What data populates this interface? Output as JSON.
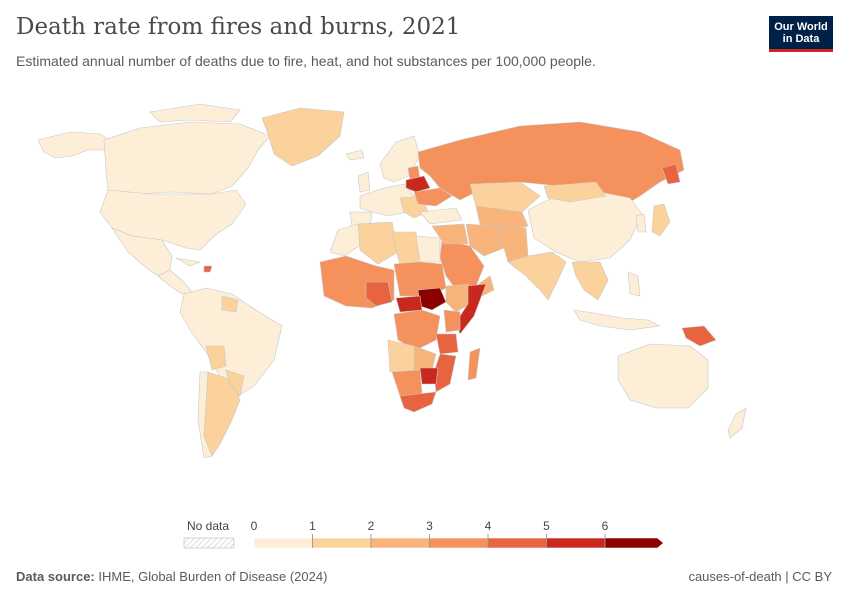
{
  "header": {
    "title": "Death rate from fires and burns, 2021",
    "subtitle": "Estimated annual number of deaths due to fire, heat, and hot substances per 100,000 people."
  },
  "logo": {
    "line1": "Our World",
    "line2": "in Data"
  },
  "legend": {
    "no_data_label": "No data",
    "ticks": [
      "0",
      "1",
      "2",
      "3",
      "4",
      "5",
      "6"
    ],
    "colors": [
      "#fdeed8",
      "#fbd29b",
      "#f8b47b",
      "#f4915c",
      "#e8633f",
      "#c9281d",
      "#8d0000"
    ]
  },
  "map": {
    "scale_colors": {
      "0-1": "#fdeed8",
      "1-2": "#fbd29b",
      "2-3": "#f8b47b",
      "3-4": "#f4915c",
      "4-5": "#e8633f",
      "5-6": "#c9281d",
      "6+": "#8d0000"
    }
  },
  "footer": {
    "source_label": "Data source:",
    "source_text": "IHME, Global Burden of Disease (2024)",
    "right_text": "causes-of-death | CC BY"
  }
}
